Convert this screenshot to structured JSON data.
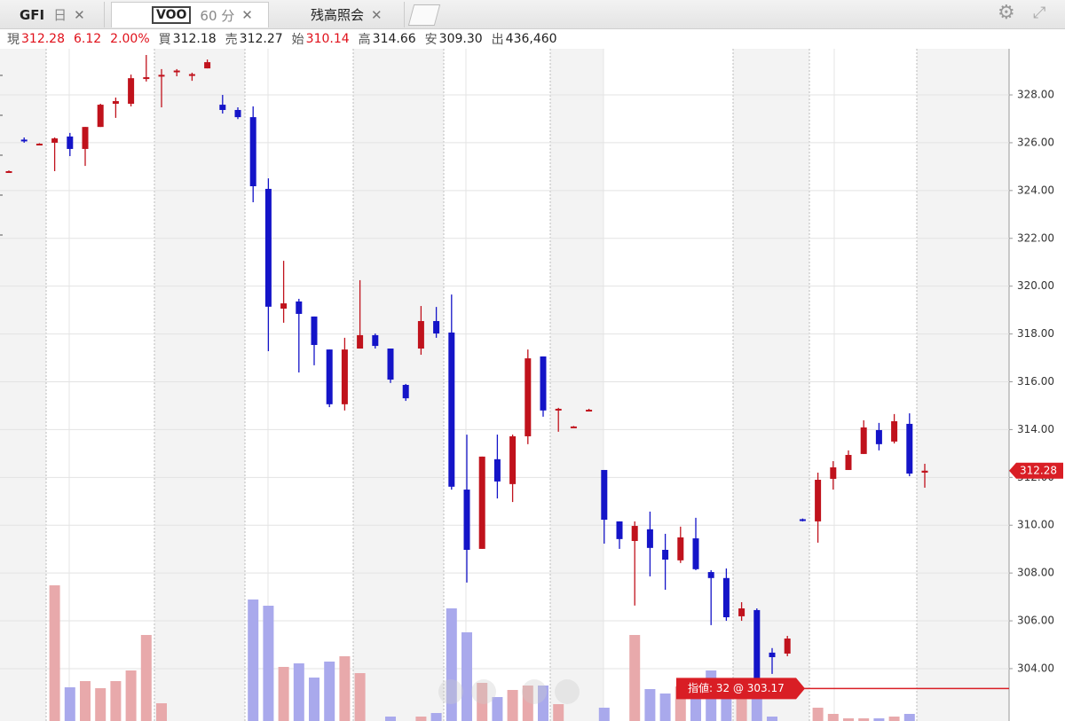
{
  "tabs": [
    {
      "label": "GFI",
      "sub": "日"
    },
    {
      "label": "VOO",
      "sub": "60 分"
    },
    {
      "label": "残高照会"
    }
  ],
  "quote": [
    {
      "label": "現",
      "text": "312.28",
      "color": "#e0101a"
    },
    {
      "text": "6.12",
      "color": "#e0101a"
    },
    {
      "text": "2.00%",
      "color": "#e0101a"
    },
    {
      "label": "買",
      "text": "312.18",
      "color": "#222222"
    },
    {
      "label": "売",
      "text": "312.27",
      "color": "#222222"
    },
    {
      "label": "始",
      "text": "310.14",
      "color": "#e0101a"
    },
    {
      "label": "高",
      "text": "314.66",
      "color": "#222222"
    },
    {
      "label": "安",
      "text": "309.30",
      "color": "#222222"
    },
    {
      "label": "出",
      "text": "436,460",
      "color": "#222222"
    }
  ],
  "chart_data": {
    "type": "candlestick",
    "open": [
      324.78,
      326.13,
      325.94,
      326.0,
      326.26,
      325.74,
      326.66,
      327.63,
      327.63,
      328.7,
      328.8,
      328.98,
      328.83,
      329.11,
      327.59,
      327.37,
      327.07,
      324.07,
      319.06,
      319.36,
      318.73,
      317.35,
      315.06,
      317.39,
      317.95,
      317.39,
      315.87,
      317.39,
      318.54,
      318.06,
      311.49,
      309.01,
      312.76,
      311.72,
      313.72,
      317.06,
      314.83,
      314.11,
      314.81,
      312.31,
      310.16,
      309.34,
      309.83,
      308.97,
      308.53,
      309.45,
      308.04,
      307.79,
      306.19,
      306.45,
      304.67,
      304.63,
      310.25,
      310.16,
      311.94,
      312.31,
      312.98,
      313.98,
      313.5,
      314.24,
      312.2
    ],
    "high": [
      324.84,
      326.22,
      325.98,
      326.22,
      326.41,
      326.66,
      327.63,
      327.89,
      328.85,
      329.67,
      329.08,
      329.08,
      328.93,
      329.48,
      328.0,
      327.48,
      327.52,
      324.51,
      321.06,
      319.47,
      318.73,
      317.35,
      317.84,
      320.25,
      318.02,
      317.39,
      315.91,
      319.17,
      319.13,
      319.65,
      313.79,
      312.87,
      313.79,
      313.79,
      317.35,
      317.06,
      314.91,
      314.15,
      314.87,
      312.31,
      310.16,
      310.16,
      310.57,
      309.64,
      309.94,
      310.31,
      308.12,
      308.19,
      306.78,
      306.52,
      304.86,
      305.37,
      310.28,
      312.2,
      312.68,
      313.13,
      314.39,
      314.28,
      314.65,
      314.68,
      312.57
    ],
    "low": [
      324.76,
      326.0,
      325.92,
      324.81,
      325.44,
      325.03,
      326.66,
      327.04,
      327.52,
      328.56,
      327.48,
      328.78,
      328.59,
      329.11,
      327.22,
      326.99,
      323.51,
      317.28,
      318.47,
      316.39,
      316.69,
      314.94,
      314.8,
      317.39,
      317.39,
      315.95,
      315.2,
      317.13,
      317.84,
      311.49,
      307.6,
      309.01,
      311.12,
      310.97,
      313.39,
      314.54,
      313.91,
      314.09,
      314.79,
      309.23,
      309.01,
      306.64,
      307.86,
      307.3,
      308.42,
      308.12,
      305.82,
      306.0,
      306.0,
      303.04,
      303.78,
      304.52,
      310.16,
      309.27,
      311.49,
      312.31,
      312.98,
      313.13,
      313.42,
      312.05,
      311.57
    ],
    "close": [
      324.81,
      326.11,
      325.96,
      326.18,
      325.74,
      326.66,
      327.59,
      327.74,
      328.7,
      328.74,
      328.84,
      329.02,
      328.87,
      329.37,
      327.37,
      327.07,
      324.18,
      319.14,
      319.28,
      318.84,
      317.54,
      315.06,
      317.35,
      317.95,
      317.5,
      316.09,
      315.31,
      318.54,
      318.02,
      311.61,
      308.97,
      312.87,
      311.83,
      313.72,
      316.98,
      314.8,
      314.87,
      314.13,
      314.83,
      310.23,
      309.42,
      309.97,
      309.05,
      308.56,
      309.49,
      308.16,
      307.79,
      306.15,
      306.52,
      303.41,
      304.48,
      305.26,
      310.19,
      311.9,
      312.42,
      312.94,
      314.09,
      313.39,
      314.35,
      312.16,
      312.28
    ],
    "volume": [
      null,
      null,
      null,
      153,
      38,
      45,
      37,
      45,
      57,
      97,
      20,
      null,
      null,
      null,
      null,
      null,
      137,
      130,
      61,
      65,
      49,
      67,
      73,
      54,
      null,
      5,
      null,
      5,
      9,
      127,
      100,
      43,
      27,
      35,
      40,
      40,
      19,
      null,
      null,
      15,
      null,
      97,
      36,
      31,
      39,
      43,
      57,
      44,
      45,
      30,
      5,
      null,
      null,
      15,
      8,
      3,
      3,
      3,
      5,
      8,
      null
    ],
    "up_color": "#c0121c",
    "down_color": "#1414c8",
    "up_volume_color": "#e8a9ab",
    "down_volume_color": "#a9a9ec",
    "ylim": [
      301.81,
      329.93
    ],
    "yticks": [
      {
        "value": 304,
        "label": "304.00"
      },
      {
        "value": 306,
        "label": "306.00"
      },
      {
        "value": 308,
        "label": "308.00"
      },
      {
        "value": 310,
        "label": "310.00"
      },
      {
        "value": 312,
        "label": "312.00"
      },
      {
        "value": 314,
        "label": "314.00"
      },
      {
        "value": 316,
        "label": "316.00"
      },
      {
        "value": 318,
        "label": "318.00"
      },
      {
        "value": 320,
        "label": "320.00"
      },
      {
        "value": 322,
        "label": "322.00"
      },
      {
        "value": 324,
        "label": "324.00"
      },
      {
        "value": 326,
        "label": "326.00"
      },
      {
        "value": 328,
        "label": "328.00"
      }
    ],
    "grid": true,
    "last_price": {
      "value": 312.28,
      "label": "312.28"
    },
    "order": {
      "value": 303.17,
      "text": "指値: 32 @ 303.17"
    }
  }
}
